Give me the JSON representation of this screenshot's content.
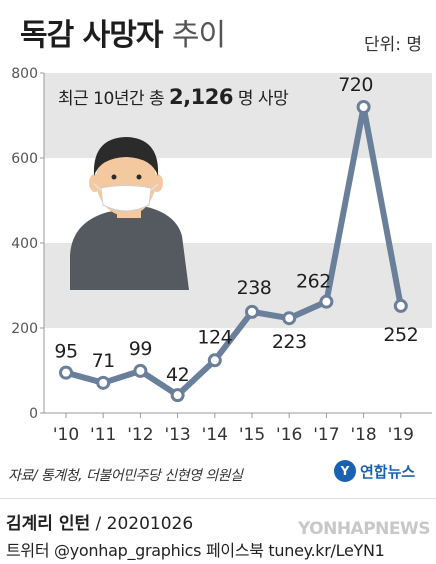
{
  "header": {
    "title_bold": "독감 사망자",
    "title_light": "추이",
    "unit": "단위: 명"
  },
  "annotation": {
    "prefix": "최근 10년간 총",
    "value": "2,126",
    "suffix": "명 사망"
  },
  "source": "자료/ 통계청, 더불어민주당 신현영 의원실",
  "brand": {
    "logo": "Y",
    "name": "연합뉴스"
  },
  "footer": {
    "author": "김계리 인턴",
    "date": "/ 20201026",
    "social": "트위터 @yonhap_graphics  페이스북 tuney.kr/LeYN1",
    "watermark": "YONHAPNEWS"
  },
  "colors": {
    "line": "#6a7f99",
    "marker_fill": "#ffffff",
    "band": "#e6e6e6",
    "person_body": "#555a60",
    "skin": "#f4c9a0",
    "mask": "#ffffff",
    "hair": "#2b2b2b"
  },
  "chart_data": {
    "type": "line",
    "categories": [
      "'10",
      "'11",
      "'12",
      "'13",
      "'14",
      "'15",
      "'16",
      "'17",
      "'18",
      "'19"
    ],
    "values": [
      95,
      71,
      99,
      42,
      124,
      238,
      223,
      262,
      720,
      252
    ],
    "data_labels": [
      "95",
      "71",
      "99",
      "42",
      "124",
      "238",
      "223",
      "262",
      "720",
      "252"
    ],
    "y_ticks": [
      0,
      200,
      400,
      600,
      800
    ],
    "ylim": [
      0,
      800
    ],
    "grid": "alternating horizontal bands",
    "illustration": "person-wearing-mask"
  }
}
